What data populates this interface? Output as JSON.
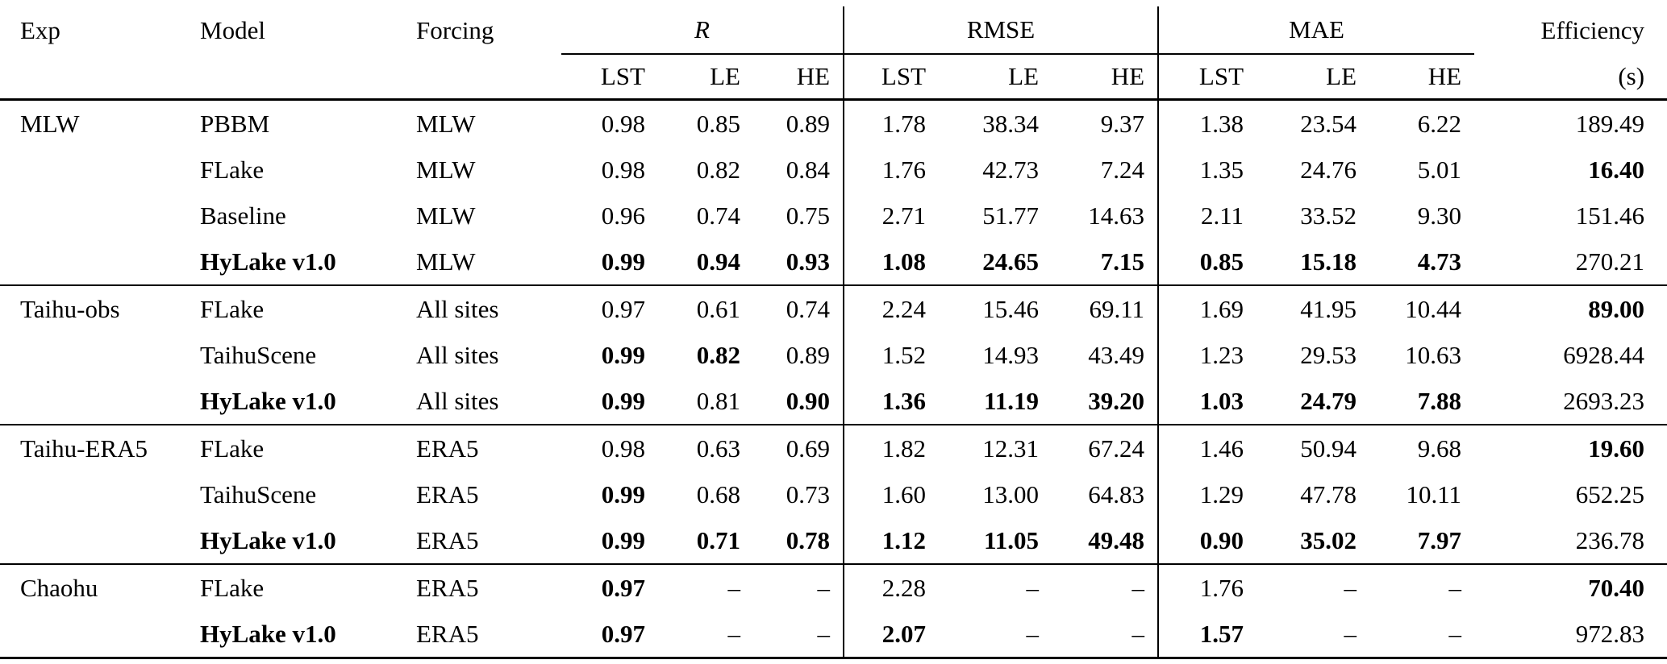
{
  "header": {
    "exp": "Exp",
    "model": "Model",
    "forcing": "Forcing",
    "r": "R",
    "rmse": "RMSE",
    "mae": "MAE",
    "efficiency": "Efficiency",
    "efficiency_unit": "(s)",
    "sub": [
      "LST",
      "LE",
      "HE"
    ]
  },
  "groups": [
    {
      "exp": "MLW",
      "rows": [
        {
          "model": "PBBM",
          "bold_model": false,
          "forcing": "MLW",
          "cells": [
            [
              "0.98",
              0
            ],
            [
              "0.85",
              0
            ],
            [
              "0.89",
              0
            ],
            [
              "1.78",
              0
            ],
            [
              "38.34",
              0
            ],
            [
              "9.37",
              0
            ],
            [
              "1.38",
              0
            ],
            [
              "23.54",
              0
            ],
            [
              "6.22",
              0
            ],
            [
              "189.49",
              0
            ]
          ]
        },
        {
          "model": "FLake",
          "bold_model": false,
          "forcing": "MLW",
          "cells": [
            [
              "0.98",
              0
            ],
            [
              "0.82",
              0
            ],
            [
              "0.84",
              0
            ],
            [
              "1.76",
              0
            ],
            [
              "42.73",
              0
            ],
            [
              "7.24",
              0
            ],
            [
              "1.35",
              0
            ],
            [
              "24.76",
              0
            ],
            [
              "5.01",
              0
            ],
            [
              "16.40",
              1
            ]
          ]
        },
        {
          "model": "Baseline",
          "bold_model": false,
          "forcing": "MLW",
          "cells": [
            [
              "0.96",
              0
            ],
            [
              "0.74",
              0
            ],
            [
              "0.75",
              0
            ],
            [
              "2.71",
              0
            ],
            [
              "51.77",
              0
            ],
            [
              "14.63",
              0
            ],
            [
              "2.11",
              0
            ],
            [
              "33.52",
              0
            ],
            [
              "9.30",
              0
            ],
            [
              "151.46",
              0
            ]
          ]
        },
        {
          "model": "HyLake v1.0",
          "bold_model": true,
          "forcing": "MLW",
          "cells": [
            [
              "0.99",
              1
            ],
            [
              "0.94",
              1
            ],
            [
              "0.93",
              1
            ],
            [
              "1.08",
              1
            ],
            [
              "24.65",
              1
            ],
            [
              "7.15",
              1
            ],
            [
              "0.85",
              1
            ],
            [
              "15.18",
              1
            ],
            [
              "4.73",
              1
            ],
            [
              "270.21",
              0
            ]
          ]
        }
      ]
    },
    {
      "exp": "Taihu-obs",
      "rows": [
        {
          "model": "FLake",
          "bold_model": false,
          "forcing": "All sites",
          "cells": [
            [
              "0.97",
              0
            ],
            [
              "0.61",
              0
            ],
            [
              "0.74",
              0
            ],
            [
              "2.24",
              0
            ],
            [
              "15.46",
              0
            ],
            [
              "69.11",
              0
            ],
            [
              "1.69",
              0
            ],
            [
              "41.95",
              0
            ],
            [
              "10.44",
              0
            ],
            [
              "89.00",
              1
            ]
          ]
        },
        {
          "model": "TaihuScene",
          "bold_model": false,
          "forcing": "All sites",
          "cells": [
            [
              "0.99",
              1
            ],
            [
              "0.82",
              1
            ],
            [
              "0.89",
              0
            ],
            [
              "1.52",
              0
            ],
            [
              "14.93",
              0
            ],
            [
              "43.49",
              0
            ],
            [
              "1.23",
              0
            ],
            [
              "29.53",
              0
            ],
            [
              "10.63",
              0
            ],
            [
              "6928.44",
              0
            ]
          ]
        },
        {
          "model": "HyLake v1.0",
          "bold_model": true,
          "forcing": "All sites",
          "cells": [
            [
              "0.99",
              1
            ],
            [
              "0.81",
              0
            ],
            [
              "0.90",
              1
            ],
            [
              "1.36",
              1
            ],
            [
              "11.19",
              1
            ],
            [
              "39.20",
              1
            ],
            [
              "1.03",
              1
            ],
            [
              "24.79",
              1
            ],
            [
              "7.88",
              1
            ],
            [
              "2693.23",
              0
            ]
          ]
        }
      ]
    },
    {
      "exp": "Taihu-ERA5",
      "rows": [
        {
          "model": "FLake",
          "bold_model": false,
          "forcing": "ERA5",
          "cells": [
            [
              "0.98",
              0
            ],
            [
              "0.63",
              0
            ],
            [
              "0.69",
              0
            ],
            [
              "1.82",
              0
            ],
            [
              "12.31",
              0
            ],
            [
              "67.24",
              0
            ],
            [
              "1.46",
              0
            ],
            [
              "50.94",
              0
            ],
            [
              "9.68",
              0
            ],
            [
              "19.60",
              1
            ]
          ]
        },
        {
          "model": "TaihuScene",
          "bold_model": false,
          "forcing": "ERA5",
          "cells": [
            [
              "0.99",
              1
            ],
            [
              "0.68",
              0
            ],
            [
              "0.73",
              0
            ],
            [
              "1.60",
              0
            ],
            [
              "13.00",
              0
            ],
            [
              "64.83",
              0
            ],
            [
              "1.29",
              0
            ],
            [
              "47.78",
              0
            ],
            [
              "10.11",
              0
            ],
            [
              "652.25",
              0
            ]
          ]
        },
        {
          "model": "HyLake v1.0",
          "bold_model": true,
          "forcing": "ERA5",
          "cells": [
            [
              "0.99",
              1
            ],
            [
              "0.71",
              1
            ],
            [
              "0.78",
              1
            ],
            [
              "1.12",
              1
            ],
            [
              "11.05",
              1
            ],
            [
              "49.48",
              1
            ],
            [
              "0.90",
              1
            ],
            [
              "35.02",
              1
            ],
            [
              "7.97",
              1
            ],
            [
              "236.78",
              0
            ]
          ]
        }
      ]
    },
    {
      "exp": "Chaohu",
      "rows": [
        {
          "model": "FLake",
          "bold_model": false,
          "forcing": "ERA5",
          "cells": [
            [
              "0.97",
              1
            ],
            [
              "–",
              0
            ],
            [
              "–",
              0
            ],
            [
              "2.28",
              0
            ],
            [
              "–",
              0
            ],
            [
              "–",
              0
            ],
            [
              "1.76",
              0
            ],
            [
              "–",
              0
            ],
            [
              "–",
              0
            ],
            [
              "70.40",
              1
            ]
          ]
        },
        {
          "model": "HyLake v1.0",
          "bold_model": true,
          "forcing": "ERA5",
          "cells": [
            [
              "0.97",
              1
            ],
            [
              "–",
              0
            ],
            [
              "–",
              0
            ],
            [
              "2.07",
              1
            ],
            [
              "–",
              0
            ],
            [
              "–",
              0
            ],
            [
              "1.57",
              1
            ],
            [
              "–",
              0
            ],
            [
              "–",
              0
            ],
            [
              "972.83",
              0
            ]
          ]
        }
      ]
    }
  ]
}
